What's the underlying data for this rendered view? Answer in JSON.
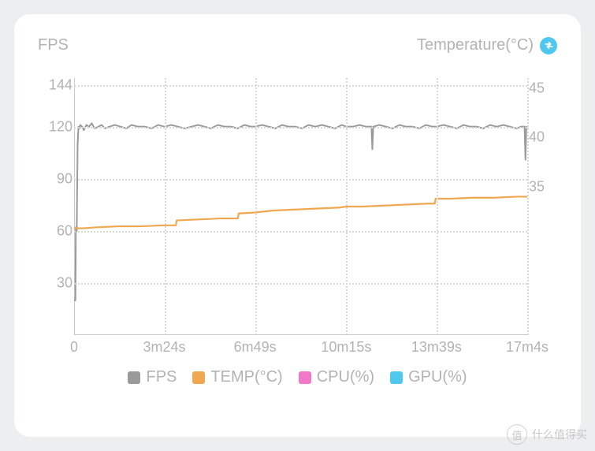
{
  "header": {
    "y1_title": "FPS",
    "y2_title": "Temperature(°C)"
  },
  "chart": {
    "type": "line-dual-axis",
    "background_color": "#ffffff",
    "grid_color": "#d9d9d9",
    "axis_color": "#c9c9c9",
    "tick_fontsize": 18,
    "tick_color": "#b3b3b3",
    "y_left": {
      "min": 0,
      "max": 148,
      "ticks": [
        30,
        60,
        90,
        120,
        144
      ]
    },
    "y_right": {
      "min": 20,
      "max": 46,
      "ticks": [
        35,
        40,
        45
      ]
    },
    "x": {
      "min": 0,
      "max": 1024,
      "ticks": [
        {
          "v": 0,
          "label": "0"
        },
        {
          "v": 204,
          "label": "3m24s"
        },
        {
          "v": 409,
          "label": "6m49s"
        },
        {
          "v": 615,
          "label": "10m15s"
        },
        {
          "v": 819,
          "label": "13m39s"
        },
        {
          "v": 1024,
          "label": "17m4s"
        }
      ]
    },
    "series": [
      {
        "name": "FPS",
        "axis": "left",
        "color": "#9a9a9a",
        "line_width": 2,
        "data": [
          [
            0,
            20
          ],
          [
            3,
            20
          ],
          [
            4,
            62
          ],
          [
            6,
            60
          ],
          [
            8,
            110
          ],
          [
            10,
            120
          ],
          [
            12,
            119
          ],
          [
            14,
            121
          ],
          [
            18,
            120
          ],
          [
            22,
            118
          ],
          [
            28,
            121
          ],
          [
            34,
            120
          ],
          [
            40,
            122
          ],
          [
            46,
            119
          ],
          [
            55,
            120
          ],
          [
            62,
            121
          ],
          [
            70,
            119
          ],
          [
            80,
            120
          ],
          [
            92,
            121
          ],
          [
            105,
            120
          ],
          [
            118,
            119
          ],
          [
            130,
            121
          ],
          [
            145,
            120
          ],
          [
            160,
            120
          ],
          [
            175,
            119
          ],
          [
            190,
            121
          ],
          [
            204,
            120
          ],
          [
            220,
            121
          ],
          [
            235,
            120
          ],
          [
            250,
            119
          ],
          [
            265,
            120
          ],
          [
            280,
            121
          ],
          [
            295,
            120
          ],
          [
            309,
            119
          ],
          [
            325,
            121
          ],
          [
            340,
            120
          ],
          [
            355,
            120
          ],
          [
            370,
            119
          ],
          [
            385,
            121
          ],
          [
            400,
            120
          ],
          [
            409,
            120
          ],
          [
            425,
            121
          ],
          [
            440,
            120
          ],
          [
            455,
            119
          ],
          [
            470,
            121
          ],
          [
            485,
            120
          ],
          [
            500,
            120
          ],
          [
            515,
            119
          ],
          [
            530,
            121
          ],
          [
            545,
            120
          ],
          [
            560,
            121
          ],
          [
            575,
            120
          ],
          [
            590,
            119
          ],
          [
            605,
            121
          ],
          [
            615,
            120
          ],
          [
            630,
            120
          ],
          [
            645,
            121
          ],
          [
            660,
            120
          ],
          [
            672,
            120
          ],
          [
            674,
            107
          ],
          [
            676,
            120
          ],
          [
            690,
            121
          ],
          [
            705,
            120
          ],
          [
            720,
            119
          ],
          [
            735,
            121
          ],
          [
            750,
            120
          ],
          [
            765,
            120
          ],
          [
            780,
            119
          ],
          [
            795,
            121
          ],
          [
            810,
            120
          ],
          [
            819,
            120
          ],
          [
            835,
            121
          ],
          [
            850,
            120
          ],
          [
            865,
            119
          ],
          [
            880,
            121
          ],
          [
            895,
            120
          ],
          [
            910,
            120
          ],
          [
            925,
            119
          ],
          [
            940,
            121
          ],
          [
            955,
            120
          ],
          [
            970,
            121
          ],
          [
            985,
            120
          ],
          [
            1000,
            119
          ],
          [
            1010,
            120
          ],
          [
            1018,
            120
          ],
          [
            1020,
            101
          ],
          [
            1022,
            120
          ],
          [
            1024,
            119
          ]
        ]
      },
      {
        "name": "TEMP",
        "axis": "right",
        "color": "#f0a850",
        "line_width": 2.2,
        "data": [
          [
            0,
            30.8
          ],
          [
            20,
            30.8
          ],
          [
            50,
            30.9
          ],
          [
            100,
            31.0
          ],
          [
            150,
            31.0
          ],
          [
            200,
            31.1
          ],
          [
            204,
            31.1
          ],
          [
            230,
            31.1
          ],
          [
            232,
            31.6
          ],
          [
            280,
            31.7
          ],
          [
            330,
            31.8
          ],
          [
            370,
            31.8
          ],
          [
            372,
            32.3
          ],
          [
            409,
            32.4
          ],
          [
            450,
            32.6
          ],
          [
            500,
            32.7
          ],
          [
            550,
            32.8
          ],
          [
            600,
            32.9
          ],
          [
            615,
            33.0
          ],
          [
            650,
            33.0
          ],
          [
            700,
            33.1
          ],
          [
            750,
            33.2
          ],
          [
            800,
            33.3
          ],
          [
            815,
            33.3
          ],
          [
            817,
            33.8
          ],
          [
            850,
            33.8
          ],
          [
            900,
            33.9
          ],
          [
            950,
            33.9
          ],
          [
            1000,
            34.0
          ],
          [
            1024,
            34.0
          ]
        ]
      }
    ]
  },
  "legend": [
    {
      "label": "FPS",
      "color": "#9a9a9a"
    },
    {
      "label": "TEMP(°C)",
      "color": "#f0a850"
    },
    {
      "label": "CPU(%)",
      "color": "#f178c6"
    },
    {
      "label": "GPU(%)",
      "color": "#4fc8ef"
    }
  ],
  "watermark": {
    "badge": "值",
    "text": "什么值得买"
  }
}
